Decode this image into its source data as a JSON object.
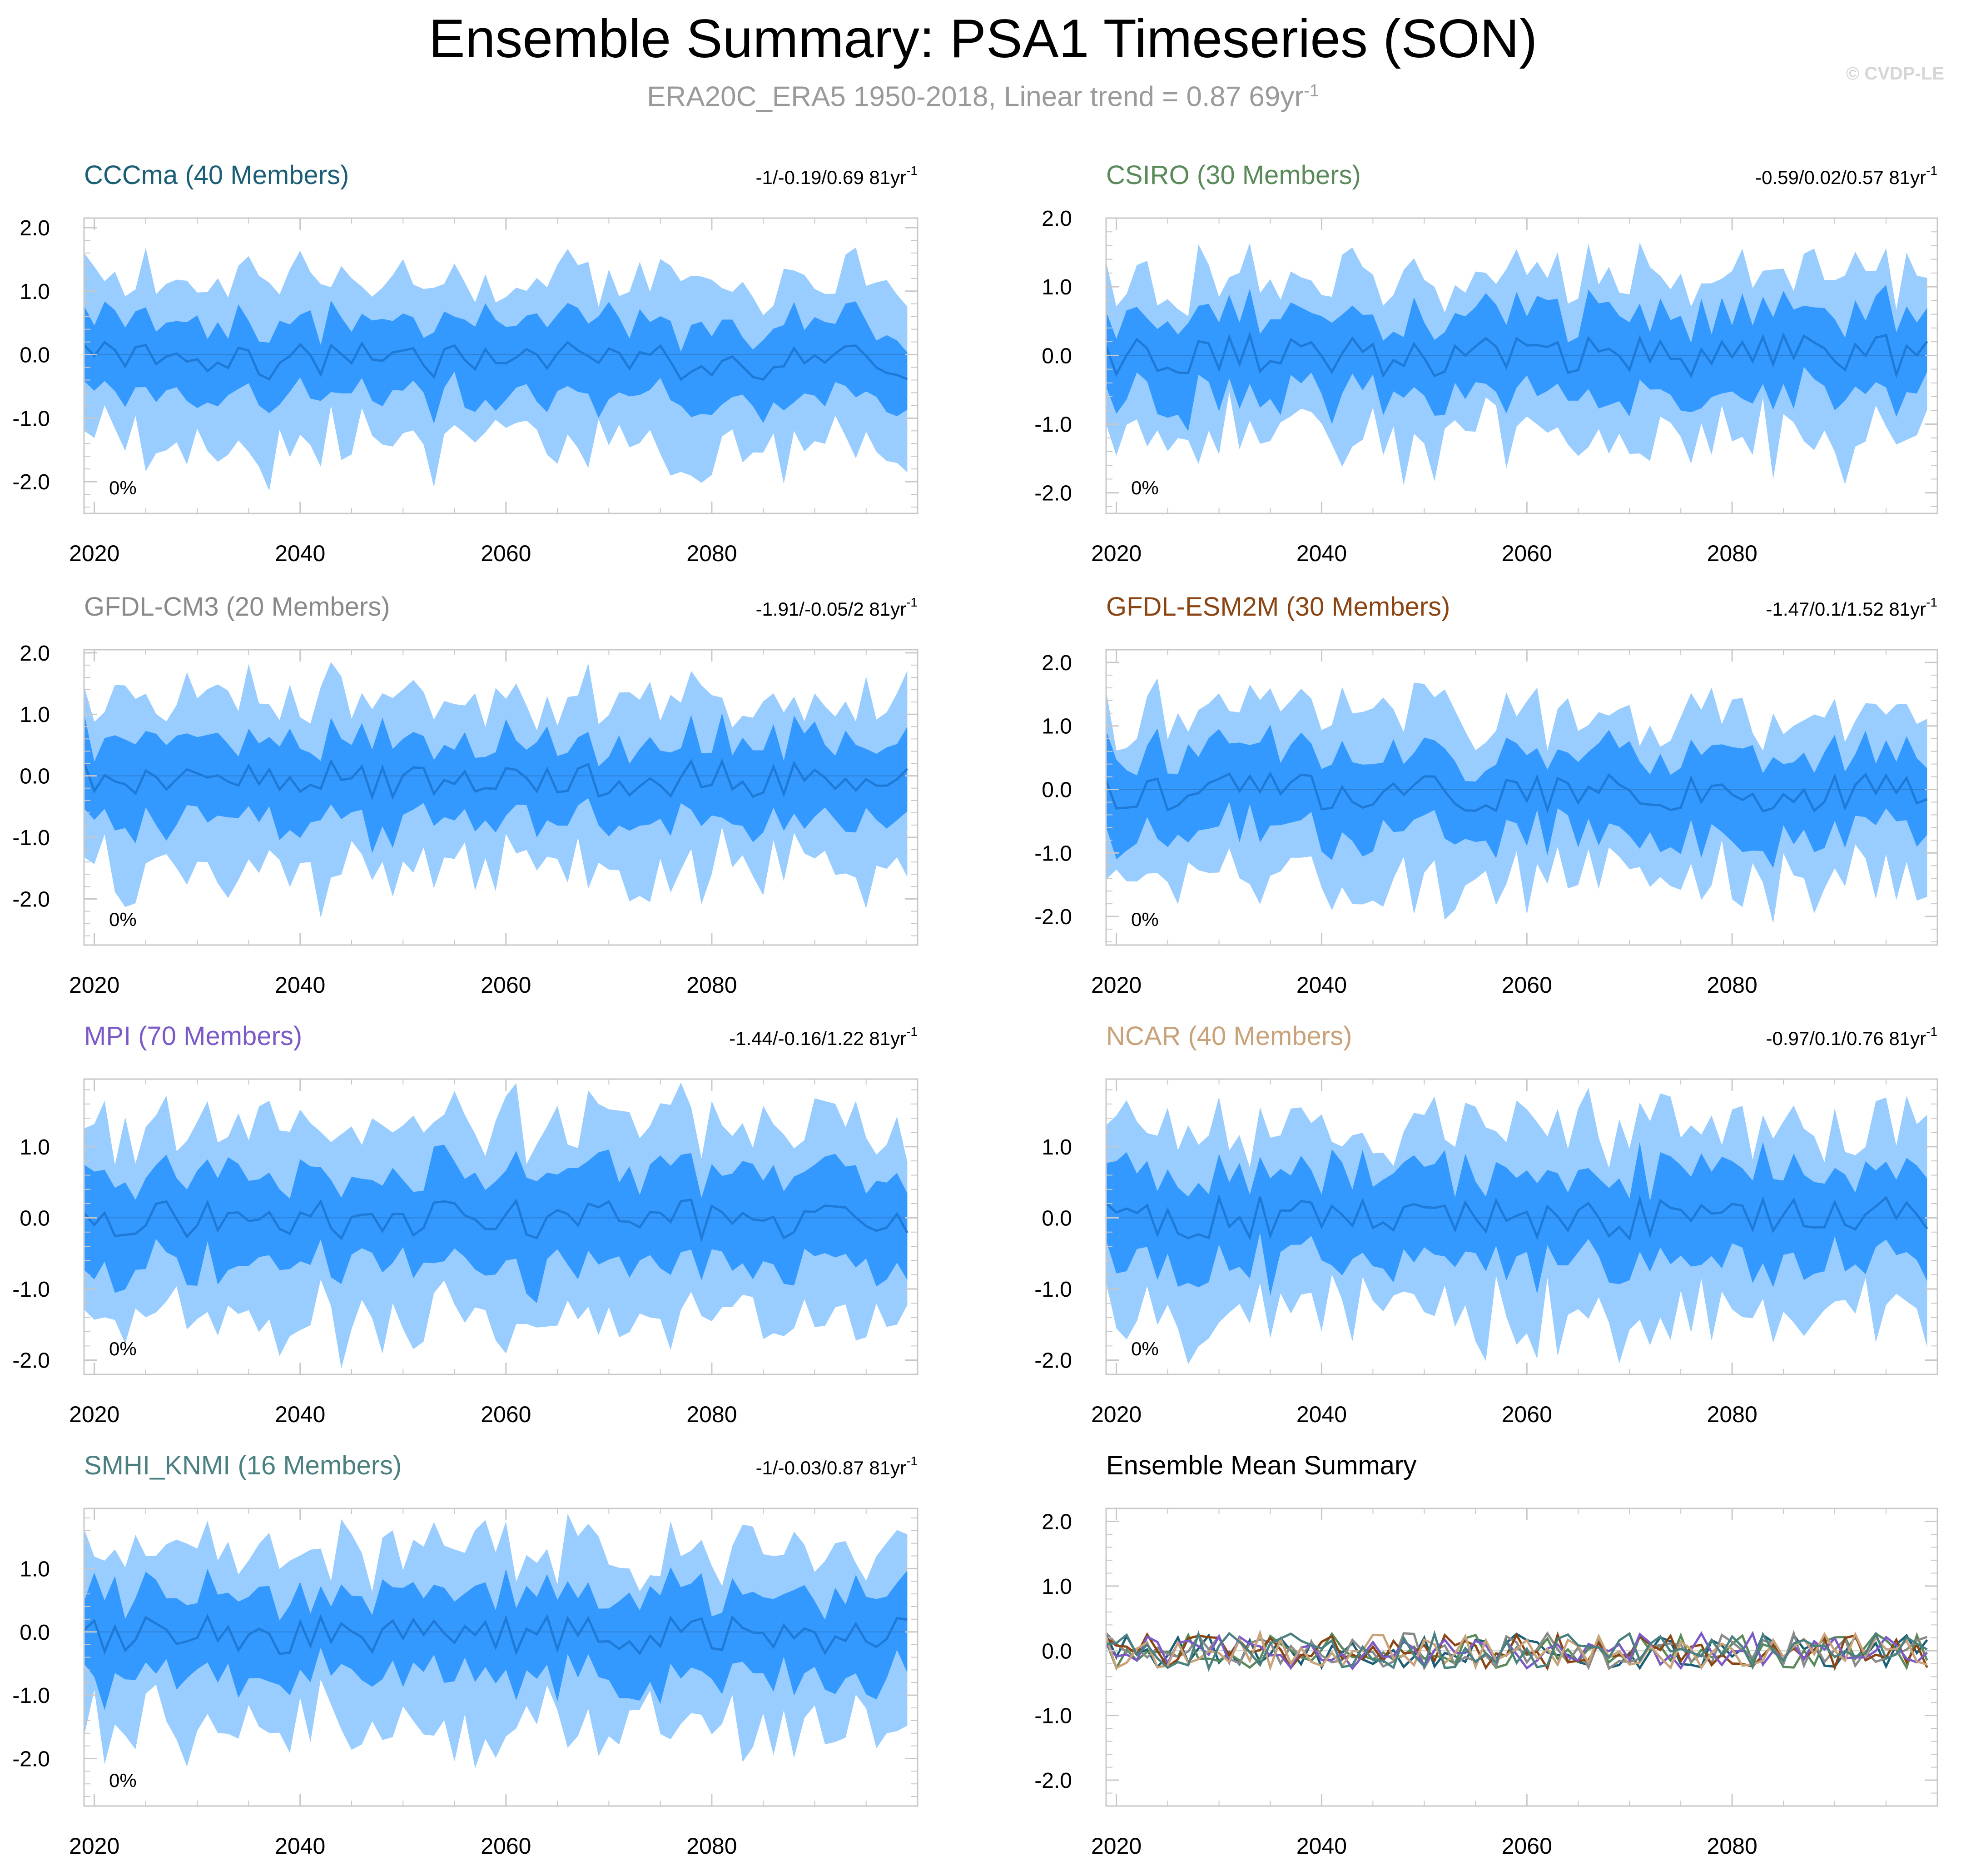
{
  "title": "Ensemble Summary: PSA1 Timeseries (SON)",
  "subtitle_main": "ERA20C_ERA5 1950-2018, Linear trend = 0.87 69yr",
  "subtitle_exp": "-1",
  "watermark": "© CVDP-LE",
  "colors": {
    "outer_band": "#99ccff",
    "inner_band": "#3399ff",
    "mean_line": "#1e7ad6",
    "zero_line": "#2f7fd0"
  },
  "chart_data": [
    {
      "type": "area",
      "title": "CCCma (40 Members)",
      "title_color": "#1b5e76",
      "stats": "-1/-0.19/0.69 81yr",
      "stats_exp": "-1",
      "pct": "0%",
      "xlim": [
        2019,
        2100
      ],
      "ylim": [
        -2.5,
        2.15
      ],
      "xticks": [
        2020,
        2040,
        2060,
        2080
      ],
      "yticks": [
        -2,
        -1,
        0,
        1,
        2
      ],
      "ytick_labels": [
        "-2.0",
        "-1.0",
        "0.0",
        "1.0",
        "2.0"
      ],
      "seed": 11,
      "offset": -0.1,
      "spread_outer": 1.15,
      "spread_inner": 0.55
    },
    {
      "type": "area",
      "title": "CSIRO (30 Members)",
      "title_color": "#5a8a5a",
      "stats": "-0.59/0.02/0.57 81yr",
      "stats_exp": "-1",
      "pct": "0%",
      "xlim": [
        2019,
        2100
      ],
      "ylim": [
        -2.3,
        2.0
      ],
      "xticks": [
        2020,
        2040,
        2060,
        2080
      ],
      "yticks": [
        -2,
        -1,
        0,
        1,
        2
      ],
      "ytick_labels": [
        "-2.0",
        "-1.0",
        "0.0",
        "1.0",
        "2.0"
      ],
      "seed": 23,
      "offset": 0.0,
      "spread_outer": 1.1,
      "spread_inner": 0.55
    },
    {
      "type": "area",
      "title": "GFDL-CM3 (20 Members)",
      "title_color": "#8a8a8a",
      "stats": "-1.91/-0.05/2 81yr",
      "stats_exp": "-1",
      "pct": "0%",
      "xlim": [
        2019,
        2100
      ],
      "ylim": [
        -2.75,
        2.05
      ],
      "xticks": [
        2020,
        2040,
        2060,
        2080
      ],
      "yticks": [
        -2,
        -1,
        0,
        1,
        2
      ],
      "ytick_labels": [
        "-2.0",
        "-1.0",
        "0.0",
        "1.0",
        "2.0"
      ],
      "seed": 37,
      "offset": -0.05,
      "spread_outer": 1.25,
      "spread_inner": 0.6
    },
    {
      "type": "area",
      "title": "GFDL-ESM2M (30 Members)",
      "title_color": "#8b4513",
      "stats": "-1.47/0.1/1.52 81yr",
      "stats_exp": "-1",
      "pct": "0%",
      "xlim": [
        2019,
        2100
      ],
      "ylim": [
        -2.45,
        2.2
      ],
      "xticks": [
        2020,
        2040,
        2060,
        2080
      ],
      "yticks": [
        -2,
        -1,
        0,
        1,
        2
      ],
      "ytick_labels": [
        "-2.0",
        "-1.0",
        "0.0",
        "1.0",
        "2.0"
      ],
      "seed": 41,
      "offset": -0.05,
      "spread_outer": 1.2,
      "spread_inner": 0.6
    },
    {
      "type": "area",
      "title": "MPI (70 Members)",
      "title_color": "#7b5ac8",
      "stats": "-1.44/-0.16/1.22 81yr",
      "stats_exp": "-1",
      "pct": "0%",
      "xlim": [
        2019,
        2100
      ],
      "ylim": [
        -2.2,
        1.95
      ],
      "xticks": [
        2020,
        2040,
        2060,
        2080
      ],
      "yticks": [
        -2,
        -1,
        0,
        1
      ],
      "ytick_labels": [
        "-2.0",
        "-1.0",
        "0.0",
        "1.0"
      ],
      "seed": 53,
      "offset": 0.0,
      "spread_outer": 1.25,
      "spread_inner": 0.6
    },
    {
      "type": "area",
      "title": "NCAR (40 Members)",
      "title_color": "#c8a27a",
      "stats": "-0.97/0.1/0.76 81yr",
      "stats_exp": "-1",
      "pct": "0%",
      "xlim": [
        2019,
        2100
      ],
      "ylim": [
        -2.2,
        1.95
      ],
      "xticks": [
        2020,
        2040,
        2060,
        2080
      ],
      "yticks": [
        -2,
        -1,
        0,
        1
      ],
      "ytick_labels": [
        "-2.0",
        "-1.0",
        "0.0",
        "1.0"
      ],
      "seed": 67,
      "offset": 0.0,
      "spread_outer": 1.2,
      "spread_inner": 0.6
    },
    {
      "type": "area",
      "title": "SMHI_KNMI (16 Members)",
      "title_color": "#4a8080",
      "stats": "-1/-0.03/0.87 81yr",
      "stats_exp": "-1",
      "pct": "0%",
      "xlim": [
        2019,
        2100
      ],
      "ylim": [
        -2.75,
        1.95
      ],
      "xticks": [
        2020,
        2040,
        2060,
        2080
      ],
      "yticks": [
        -2,
        -1,
        0,
        1
      ],
      "ytick_labels": [
        "-2.0",
        "-1.0",
        "0.0",
        "1.0"
      ],
      "seed": 79,
      "offset": -0.05,
      "spread_outer": 1.25,
      "spread_inner": 0.6
    },
    {
      "type": "line",
      "title": "Ensemble Mean Summary",
      "title_color": "#000000",
      "stats": "",
      "stats_exp": "",
      "pct": "",
      "xlim": [
        2019,
        2100
      ],
      "ylim": [
        -2.4,
        2.2
      ],
      "xticks": [
        2020,
        2040,
        2060,
        2080
      ],
      "yticks": [
        -2,
        -1,
        0,
        1,
        2
      ],
      "ytick_labels": [
        "-2.0",
        "-1.0",
        "0.0",
        "1.0",
        "2.0"
      ],
      "series": [
        {
          "name": "CCCma",
          "color": "#1b5e76",
          "seed": 11
        },
        {
          "name": "CSIRO",
          "color": "#5a8a5a",
          "seed": 23
        },
        {
          "name": "GFDL-CM3",
          "color": "#8a8a8a",
          "seed": 37
        },
        {
          "name": "GFDL-ESM2M",
          "color": "#8b4513",
          "seed": 41
        },
        {
          "name": "MPI",
          "color": "#7b5ac8",
          "seed": 53
        },
        {
          "name": "NCAR",
          "color": "#c8a27a",
          "seed": 67
        },
        {
          "name": "SMHI_KNMI",
          "color": "#4a8080",
          "seed": 79
        }
      ]
    }
  ]
}
